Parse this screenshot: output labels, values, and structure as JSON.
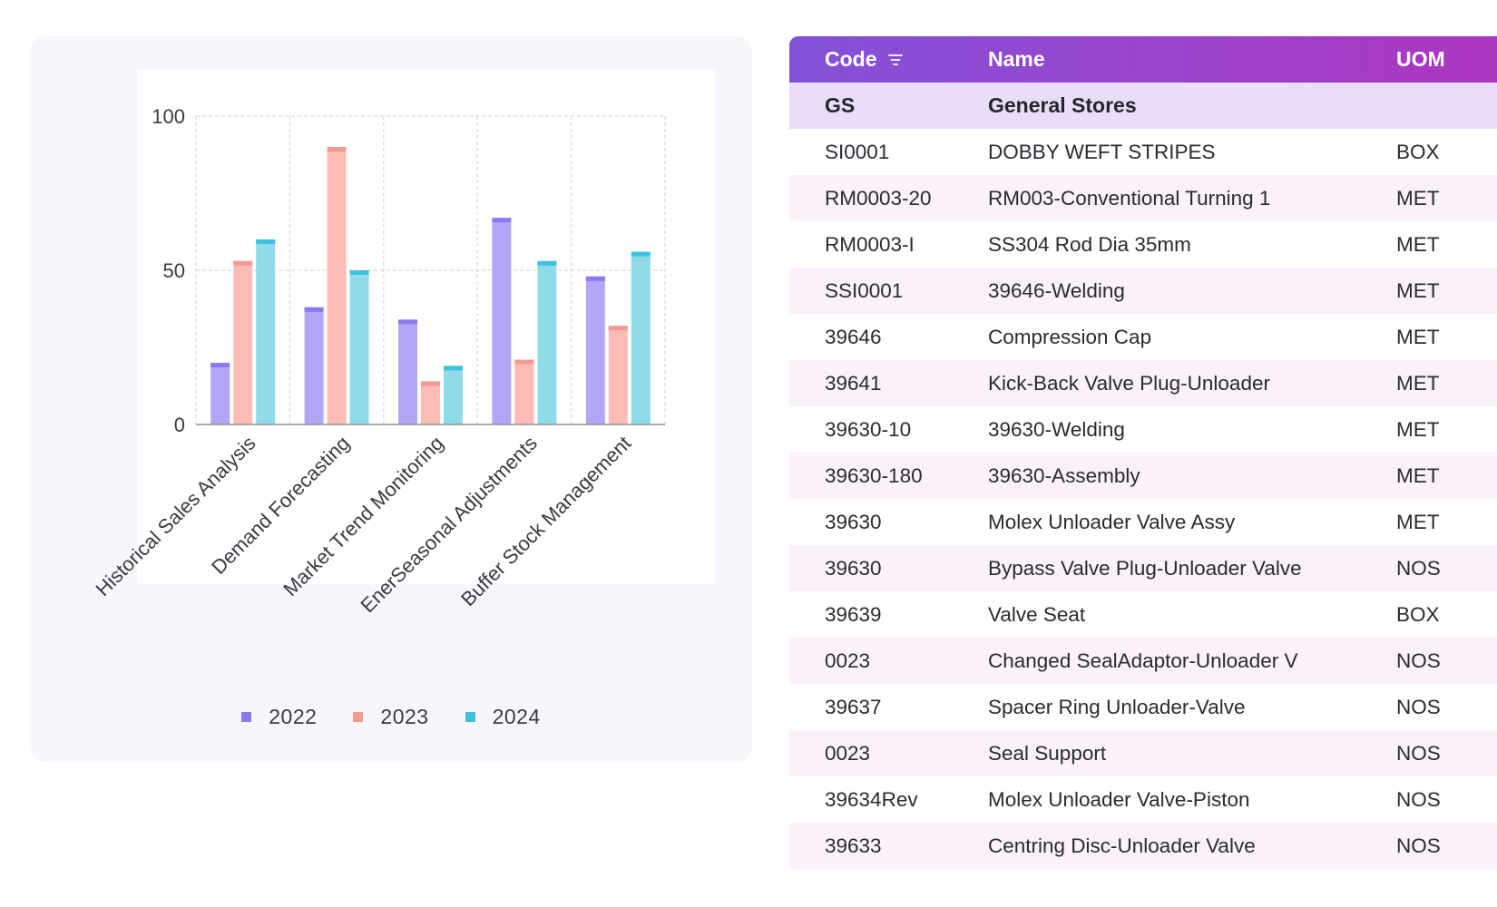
{
  "chart_data": {
    "type": "bar",
    "categories": [
      "Historical Sales Analysis",
      "Demand Forecasting",
      "Market Trend Monitoring",
      "EnerSeasonal Adjustments",
      "Buffer Stock Management"
    ],
    "series": [
      {
        "name": "2022",
        "values": [
          20,
          38,
          34,
          67,
          48
        ],
        "color": "#b3a6f6",
        "cap_color": "#8b79ef"
      },
      {
        "name": "2023",
        "values": [
          53,
          90,
          14,
          21,
          32
        ],
        "color": "#fcbcb6",
        "cap_color": "#f39a93"
      },
      {
        "name": "2024",
        "values": [
          60,
          50,
          19,
          53,
          56
        ],
        "color": "#8fdbe9",
        "cap_color": "#3cc2da"
      }
    ],
    "y_ticks": [
      "0",
      "50",
      "100"
    ],
    "ylim": [
      0,
      100
    ],
    "grid": true,
    "legend_position": "bottom-center",
    "legend_swatch_colors": [
      "#8b79ef",
      "#f39a93",
      "#3cc2da"
    ]
  },
  "table": {
    "headers": {
      "code": "Code",
      "name": "Name",
      "uom": "UOM"
    },
    "sort_icon": "filter-lines-icon",
    "group": {
      "code": "GS",
      "name": "General Stores"
    },
    "rows": [
      {
        "code": "SI0001",
        "name": "DOBBY WEFT STRIPES",
        "uom": "BOX"
      },
      {
        "code": "RM0003-20",
        "name": "RM003-Conventional Turning 1",
        "uom": "MET"
      },
      {
        "code": "RM0003-I",
        "name": "SS304 Rod Dia 35mm",
        "uom": "MET"
      },
      {
        "code": "SSI0001",
        "name": "39646-Welding",
        "uom": "MET"
      },
      {
        "code": "39646",
        "name": "Compression Cap",
        "uom": "MET"
      },
      {
        "code": "39641",
        "name": "Kick-Back Valve Plug-Unloader",
        "uom": "MET"
      },
      {
        "code": "39630-10",
        "name": "39630-Welding",
        "uom": "MET"
      },
      {
        "code": "39630-180",
        "name": "39630-Assembly",
        "uom": "MET"
      },
      {
        "code": "39630",
        "name": "Molex Unloader Valve Assy",
        "uom": "MET"
      },
      {
        "code": "39630",
        "name": "Bypass Valve Plug-Unloader Valve",
        "uom": "NOS"
      },
      {
        "code": "39639",
        "name": "Valve Seat",
        "uom": "BOX"
      },
      {
        "code": "0023",
        "name": "Changed SealAdaptor-Unloader V",
        "uom": "NOS"
      },
      {
        "code": "39637",
        "name": "Spacer Ring Unloader-Valve",
        "uom": "NOS"
      },
      {
        "code": "0023",
        "name": "Seal Support",
        "uom": "NOS"
      },
      {
        "code": "39634Rev",
        "name": "Molex Unloader Valve-Piston",
        "uom": "NOS"
      },
      {
        "code": "39633",
        "name": "Centring Disc-Unloader Valve",
        "uom": "NOS"
      }
    ]
  }
}
